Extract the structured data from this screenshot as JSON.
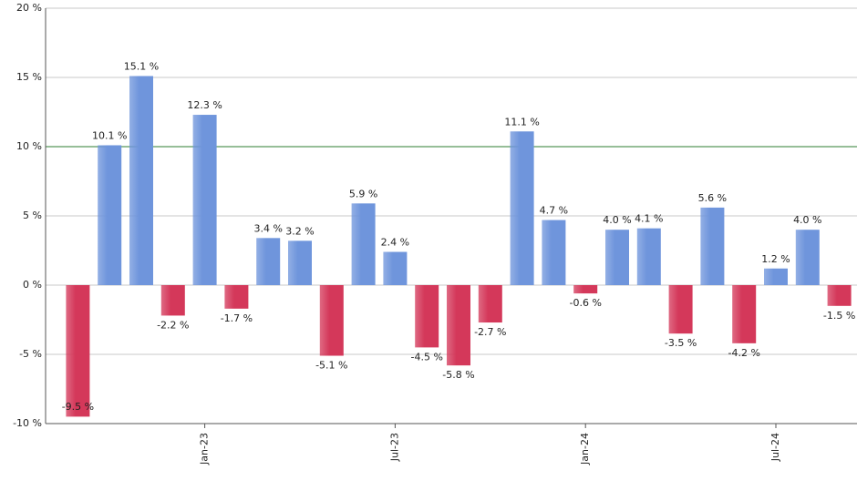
{
  "chart_data": {
    "type": "bar",
    "categories": [
      null,
      null,
      null,
      null,
      "Jan-23",
      null,
      null,
      null,
      null,
      null,
      "Jul-23",
      null,
      null,
      null,
      null,
      null,
      "Jan-24",
      null,
      null,
      null,
      null,
      null,
      "Jul-24",
      null,
      null
    ],
    "values": [
      -9.5,
      10.1,
      15.1,
      -2.2,
      12.3,
      -1.7,
      3.4,
      3.2,
      -5.1,
      5.9,
      2.4,
      -4.5,
      -5.8,
      -2.7,
      11.1,
      4.7,
      -0.6,
      4.0,
      4.1,
      -3.5,
      5.6,
      -4.2,
      1.2,
      4.0,
      -1.5
    ],
    "value_labels": [
      "-9.5 %",
      "10.1 %",
      "15.1 %",
      "-2.2 %",
      "12.3 %",
      "-1.7 %",
      "3.4 %",
      "3.2 %",
      "-5.1 %",
      "5.9 %",
      "2.4 %",
      "-4.5 %",
      "-5.8 %",
      "-2.7 %",
      "11.1 %",
      "4.7 %",
      "-0.6 %",
      "4.0 %",
      "4.1 %",
      "-3.5 %",
      "5.6 %",
      "-4.2 %",
      "1.2 %",
      "4.0 %",
      "-1.5 %"
    ],
    "positive_color": "#6f95dc",
    "negative_color": "#d4385a",
    "reference_line": {
      "value": 10,
      "color": "#2e7d32"
    },
    "ylim": [
      -10,
      20
    ],
    "yticks": [
      {
        "value": -10,
        "label": "-10 %"
      },
      {
        "value": -5,
        "label": "-5 %"
      },
      {
        "value": 0,
        "label": "0 %"
      },
      {
        "value": 5,
        "label": "5 %"
      },
      {
        "value": 10,
        "label": "10 %"
      },
      {
        "value": 15,
        "label": "15 %"
      },
      {
        "value": 20,
        "label": "20 %"
      }
    ],
    "grid": true
  }
}
